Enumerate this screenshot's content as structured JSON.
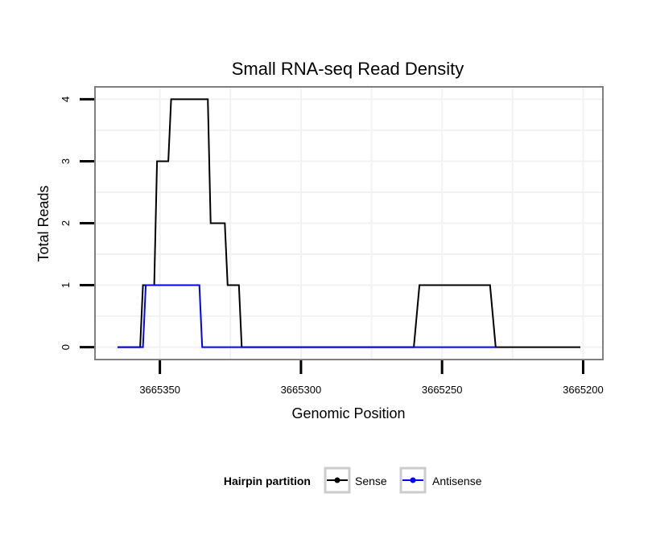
{
  "chart_data": {
    "type": "line",
    "title": "Small RNA-seq Read Density",
    "xlabel": "Genomic Position",
    "ylabel": "Total Reads",
    "xlim": [
      3665373,
      3665193
    ],
    "x_reversed": true,
    "ylim": [
      -0.2,
      4.2
    ],
    "xticks": [
      3665350,
      3665300,
      3665250,
      3665200
    ],
    "xtick_labels": [
      "3665350",
      "3665300",
      "3665250",
      "3665200"
    ],
    "yticks": [
      0,
      1,
      2,
      3,
      4
    ],
    "ytick_labels": [
      "0",
      "1",
      "2",
      "3",
      "4"
    ],
    "grid": true,
    "legend": {
      "title": "Hairpin partition",
      "position": "bottom",
      "entries": [
        {
          "name": "Sense",
          "color": "#000000"
        },
        {
          "name": "Antisense",
          "color": "#0000ff"
        }
      ]
    },
    "series": [
      {
        "name": "Sense",
        "color": "#000000",
        "x": [
          3665365,
          3665357,
          3665356,
          3665352,
          3665351,
          3665347,
          3665346,
          3665333,
          3665332,
          3665327,
          3665326,
          3665322,
          3665321,
          3665309,
          3665308,
          3665260,
          3665258,
          3665233,
          3665231,
          3665201
        ],
        "y": [
          0,
          0,
          1,
          1,
          3,
          3,
          4,
          4,
          2,
          2,
          1,
          1,
          0,
          0,
          0,
          0,
          1,
          1,
          0,
          0
        ]
      },
      {
        "name": "Antisense",
        "color": "#0000ff",
        "x": [
          3665365,
          3665356,
          3665355,
          3665336,
          3665335,
          3665322,
          3665321,
          3665260,
          3665259,
          3665232,
          3665231
        ],
        "y": [
          0,
          0,
          1,
          1,
          0,
          0,
          0,
          0,
          0,
          0,
          0
        ]
      }
    ]
  }
}
